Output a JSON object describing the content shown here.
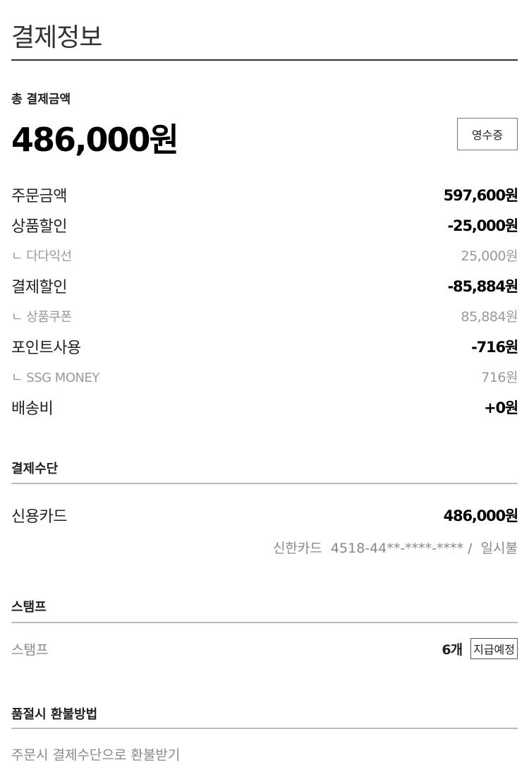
{
  "header": {
    "title": "결제정보"
  },
  "total": {
    "label": "총 결제금액",
    "amount": "486,000원",
    "receipt_button": "영수증"
  },
  "breakdown": [
    {
      "label": "주문금액",
      "value": "597,600원",
      "sub": false
    },
    {
      "label": "상품할인",
      "value": "-25,000원",
      "sub": false
    },
    {
      "label": "ㄴ 다다익선",
      "value": "25,000원",
      "sub": true
    },
    {
      "label": "결제할인",
      "value": "-85,884원",
      "sub": false
    },
    {
      "label": "ㄴ 상품쿠폰",
      "value": "85,884원",
      "sub": true
    },
    {
      "label": "포인트사용",
      "value": "-716원",
      "sub": false
    },
    {
      "label": "ㄴ SSG MONEY",
      "value": "716원",
      "sub": true
    },
    {
      "label": "배송비",
      "value": "+0원",
      "sub": false
    }
  ],
  "payment_method": {
    "heading": "결제수단",
    "method": "신용카드",
    "amount": "486,000원",
    "card_info": "신한카드  4518-44**-****-**** /  일시불"
  },
  "stamp": {
    "heading": "스탬프",
    "label": "스탬프",
    "count": "6개",
    "status_button": "지급예정"
  },
  "refund": {
    "heading": "품절시 환불방법",
    "text": "주문시 결제수단으로 환불받기"
  }
}
